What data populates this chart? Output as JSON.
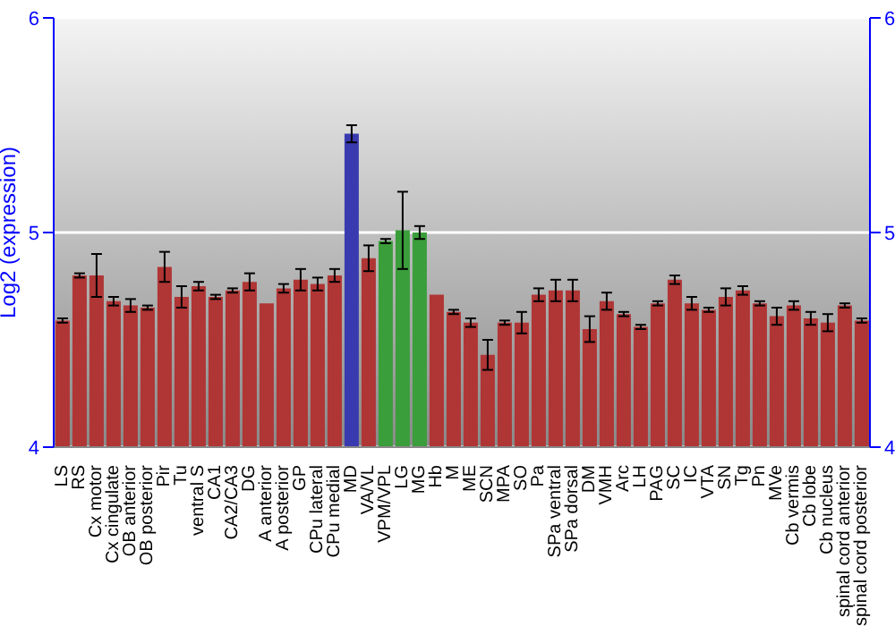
{
  "chart_data": {
    "type": "bar",
    "ylabel": "Log2 (expression)",
    "categories": [
      "LS",
      "RS",
      "Cx motor",
      "Cx cingulate",
      "OB anterior",
      "OB posterior",
      "Pir",
      "Tu",
      "ventral S",
      "CA1",
      "CA2/CA3",
      "DG",
      "A anterior",
      "A posterior",
      "GP",
      "CPu lateral",
      "CPu medial",
      "MD",
      "VA/VL",
      "VPM/VPL",
      "LG",
      "MG",
      "Hb",
      "M",
      "ME",
      "SCN",
      "MPA",
      "SO",
      "Pa",
      "SPa ventral",
      "SPa dorsal",
      "DM",
      "VMH",
      "Arc",
      "LH",
      "PAG",
      "SC",
      "IC",
      "VTA",
      "SN",
      "Tg",
      "Pn",
      "MVe",
      "Cb vermis",
      "Cb lobe",
      "Cb nucleus",
      "spinal cord anterior",
      "spinal cord posterior"
    ],
    "values": [
      4.59,
      4.8,
      4.8,
      4.68,
      4.66,
      4.65,
      4.84,
      4.7,
      4.75,
      4.7,
      4.73,
      4.77,
      4.67,
      4.74,
      4.78,
      4.76,
      4.8,
      5.46,
      4.88,
      4.96,
      5.01,
      5.0,
      4.71,
      4.63,
      4.58,
      4.43,
      4.58,
      4.58,
      4.71,
      4.73,
      4.73,
      4.55,
      4.68,
      4.62,
      4.56,
      4.67,
      4.78,
      4.67,
      4.64,
      4.7,
      4.73,
      4.67,
      4.61,
      4.66,
      4.6,
      4.58,
      4.66,
      4.59
    ],
    "errors": [
      0.01,
      0.01,
      0.1,
      0.02,
      0.03,
      0.01,
      0.07,
      0.05,
      0.02,
      0.01,
      0.01,
      0.04,
      0.0,
      0.02,
      0.05,
      0.03,
      0.03,
      0.04,
      0.06,
      0.01,
      0.18,
      0.03,
      0.0,
      0.01,
      0.02,
      0.07,
      0.01,
      0.05,
      0.03,
      0.05,
      0.05,
      0.06,
      0.04,
      0.01,
      0.01,
      0.01,
      0.02,
      0.03,
      0.01,
      0.04,
      0.02,
      0.01,
      0.04,
      0.02,
      0.03,
      0.04,
      0.01,
      0.01
    ],
    "colors": [
      "#b03535",
      "#b03535",
      "#b03535",
      "#b03535",
      "#b03535",
      "#b03535",
      "#b03535",
      "#b03535",
      "#b03535",
      "#b03535",
      "#b03535",
      "#b03535",
      "#b03535",
      "#b03535",
      "#b03535",
      "#b03535",
      "#b03535",
      "#3a3ab0",
      "#b03535",
      "#3a9e3a",
      "#3a9e3a",
      "#3a9e3a",
      "#b03535",
      "#b03535",
      "#b03535",
      "#b03535",
      "#b03535",
      "#b03535",
      "#b03535",
      "#b03535",
      "#b03535",
      "#b03535",
      "#b03535",
      "#b03535",
      "#b03535",
      "#b03535",
      "#b03535",
      "#b03535",
      "#b03535",
      "#b03535",
      "#b03535",
      "#b03535",
      "#b03535",
      "#b03535",
      "#b03535",
      "#b03535",
      "#b03535",
      "#b03535"
    ],
    "ylim": [
      4,
      6
    ],
    "yticks": [
      4,
      5,
      6
    ],
    "y2lim": [
      4,
      6
    ],
    "y2ticks": [
      4,
      5,
      6
    ],
    "grid": "y"
  }
}
